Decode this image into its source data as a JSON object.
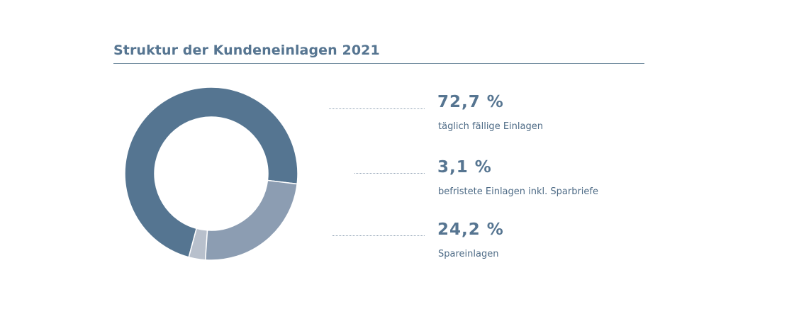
{
  "chart_data": {
    "type": "pie",
    "variant": "donut",
    "title": "Struktur der Kundeneinlagen 2021",
    "slices": [
      {
        "label": "täglich fällige Einlagen",
        "value": 72.7,
        "display": "72,7 %",
        "color": "#557591"
      },
      {
        "label": "befristete Einlagen inkl. Sparbriefe",
        "value": 3.1,
        "display": "3,1 %",
        "color": "#b8c0cc"
      },
      {
        "label": "Spareinlagen",
        "value": 24.2,
        "display": "24,2 %",
        "color": "#8c9db2"
      }
    ],
    "legend": "right"
  }
}
